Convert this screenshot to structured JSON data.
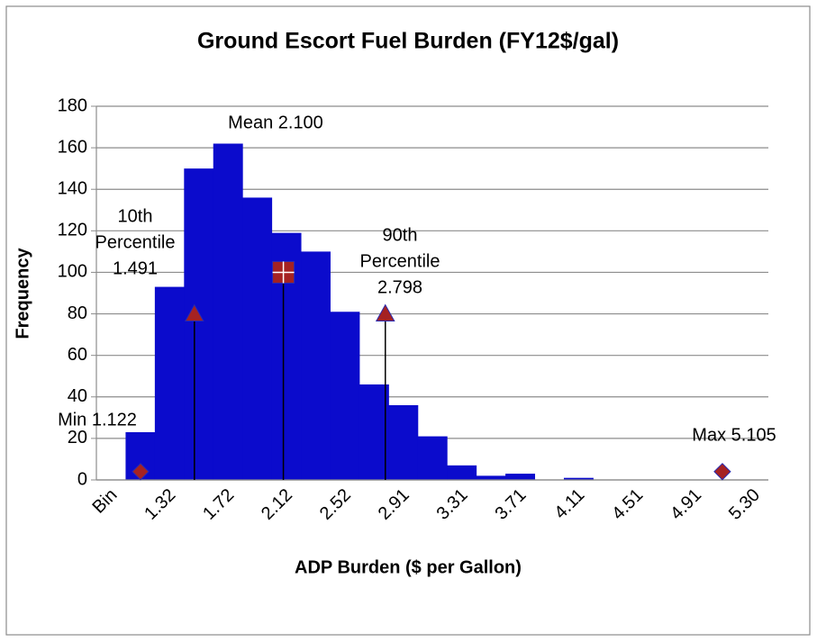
{
  "chart_data": {
    "type": "histogram",
    "title": "Ground Escort Fuel Burden (FY12$/gal)",
    "x_label": "ADP Burden ($ per Gallon)",
    "y_label": "Frequency",
    "categories": [
      "Bin",
      null,
      "1.32",
      null,
      "1.72",
      null,
      "2.12",
      null,
      "2.52",
      null,
      "2.91",
      null,
      "3.31",
      null,
      "3.71",
      null,
      "4.11",
      null,
      "4.51",
      null,
      "4.91",
      null,
      "5.30"
    ],
    "values": [
      0,
      23,
      93,
      150,
      162,
      136,
      119,
      110,
      81,
      46,
      36,
      21,
      7,
      2,
      3,
      0,
      1,
      0,
      0,
      0,
      0,
      0,
      0
    ],
    "color": "#0b0bcc",
    "ylim": [
      0,
      180
    ],
    "yticks": [
      0,
      20,
      40,
      60,
      80,
      100,
      120,
      140,
      160,
      180
    ],
    "grid": true,
    "x2lim": [
      0.82,
      5.42
    ],
    "markers": [
      {
        "lines": [
          "Min 1.122"
        ],
        "x": 1.122,
        "y": 4,
        "shape": "diamond",
        "drop_line": false
      },
      {
        "lines": [
          "10th",
          "Percentile",
          "1.491"
        ],
        "x": 1.491,
        "y": 80,
        "shape": "triangle",
        "drop_line": true
      },
      {
        "lines": [
          "Mean 2.100"
        ],
        "x": 2.1,
        "y": 100,
        "shape": "square",
        "drop_line": true
      },
      {
        "lines": [
          "90th",
          "Percentile",
          "2.798"
        ],
        "x": 2.798,
        "y": 80,
        "shape": "triangle",
        "drop_line": true
      },
      {
        "lines": [
          "Max 5.105"
        ],
        "x": 5.105,
        "y": 4,
        "shape": "diamond",
        "drop_line": false
      }
    ],
    "marker_color": "#a52222"
  }
}
